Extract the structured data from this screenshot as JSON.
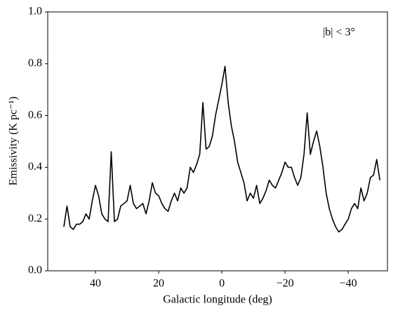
{
  "chart_data": {
    "type": "line",
    "annotation": "|b| < 3°",
    "xlabel": "Galactic longitude (deg)",
    "ylabel": "Emissivity (K pc⁻¹)",
    "xlim": [
      55.1,
      -52.4
    ],
    "ylim": [
      0,
      1
    ],
    "xticks": [
      {
        "value": 40,
        "label": "40"
      },
      {
        "value": 20,
        "label": "20"
      },
      0,
      {
        "value": -20,
        "label": "−20"
      },
      {
        "value": -40,
        "label": "−40"
      }
    ],
    "yticks": [
      {
        "value": 0,
        "label": "0.0"
      },
      {
        "value": 0.2,
        "label": "0.2"
      },
      {
        "value": 0.4,
        "label": "0.4"
      },
      {
        "value": 0.6,
        "label": "0.6"
      },
      {
        "value": 0.8,
        "label": "0.8"
      },
      {
        "value": 1,
        "label": "1.0"
      }
    ],
    "x": [
      50,
      49,
      48,
      47,
      46,
      45,
      44,
      43,
      42,
      41,
      40,
      39,
      38,
      37,
      36,
      35,
      34,
      33,
      32,
      31,
      30,
      29,
      28,
      27,
      26,
      25,
      24,
      23,
      22,
      21,
      20,
      19,
      18,
      17,
      16,
      15,
      14,
      13,
      12,
      11,
      10,
      9,
      8,
      7,
      6,
      5,
      4,
      3,
      2,
      1,
      0,
      -1,
      -2,
      -3,
      -4,
      -5,
      -6,
      -7,
      -8,
      -9,
      -10,
      -11,
      -12,
      -13,
      -14,
      -15,
      -16,
      -17,
      -18,
      -19,
      -20,
      -21,
      -22,
      -23,
      -24,
      -25,
      -26,
      -27,
      -28,
      -29,
      -30,
      -31,
      -32,
      -33,
      -34,
      -35,
      -36,
      -37,
      -38,
      -39,
      -40,
      -41,
      -42,
      -43,
      -44,
      -45,
      -46,
      -47,
      -48,
      -49,
      -50
    ],
    "series": [
      {
        "color": "#000000",
        "values": [
          0.17,
          0.25,
          0.17,
          0.16,
          0.18,
          0.18,
          0.19,
          0.22,
          0.2,
          0.27,
          0.33,
          0.29,
          0.22,
          0.2,
          0.19,
          0.46,
          0.19,
          0.2,
          0.25,
          0.26,
          0.27,
          0.33,
          0.26,
          0.24,
          0.25,
          0.26,
          0.22,
          0.27,
          0.34,
          0.3,
          0.29,
          0.26,
          0.24,
          0.23,
          0.27,
          0.3,
          0.27,
          0.32,
          0.3,
          0.32,
          0.4,
          0.38,
          0.41,
          0.45,
          0.65,
          0.47,
          0.48,
          0.52,
          0.6,
          0.66,
          0.72,
          0.79,
          0.65,
          0.56,
          0.5,
          0.42,
          0.38,
          0.34,
          0.27,
          0.3,
          0.28,
          0.33,
          0.26,
          0.28,
          0.31,
          0.35,
          0.33,
          0.32,
          0.35,
          0.38,
          0.42,
          0.4,
          0.4,
          0.36,
          0.33,
          0.36,
          0.45,
          0.61,
          0.45,
          0.5,
          0.54,
          0.48,
          0.4,
          0.3,
          0.24,
          0.2,
          0.17,
          0.15,
          0.16,
          0.18,
          0.2,
          0.24,
          0.26,
          0.24,
          0.32,
          0.27,
          0.3,
          0.36,
          0.37,
          0.43,
          0.35
        ]
      }
    ]
  }
}
